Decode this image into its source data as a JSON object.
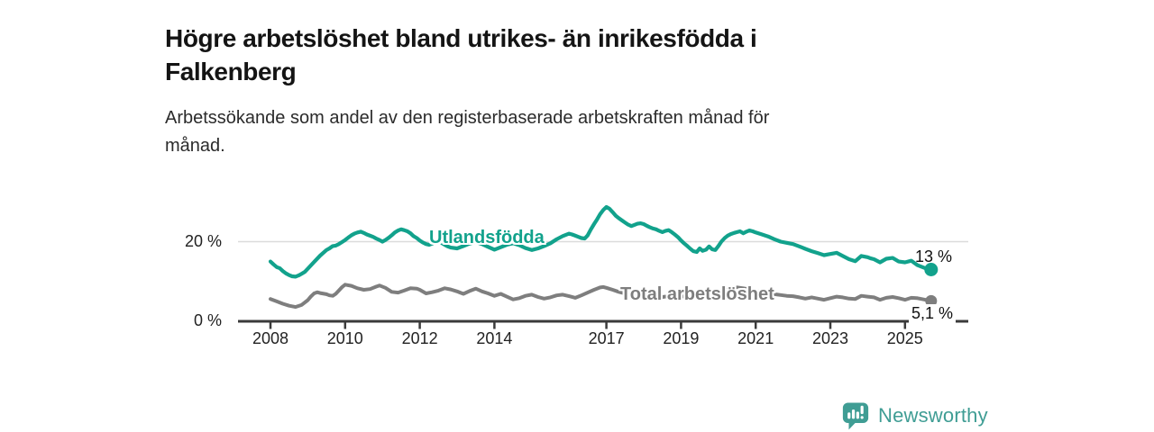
{
  "header": {
    "title_lines": [
      "Högre arbetslöshet bland utrikes- än inrikesfödda i",
      "Falkenberg"
    ],
    "subtitle_lines": [
      "Arbetssökande som andel av den registerbaserade arbetskraften månad för",
      "månad."
    ]
  },
  "chart_data": {
    "type": "line",
    "title": "Högre arbetslöshet bland utrikes- än inrikesfödda i Falkenberg",
    "subtitle": "Arbetssökande som andel av den registerbaserade arbetskraften månad för månad.",
    "x_axis": {
      "unit": "year",
      "ticks": [
        2008,
        2010,
        2012,
        2014,
        2017,
        2019,
        2021,
        2023,
        2025
      ],
      "range": [
        2007.9,
        2025.9
      ]
    },
    "y_axis": {
      "tick_labels": [
        "0 %",
        "20 %"
      ],
      "tick_values": [
        0,
        20
      ],
      "range": [
        0,
        30
      ],
      "gridline_at": 20
    },
    "legend_position": "inline-labels",
    "grid": "y-20-only",
    "series": [
      {
        "name": "Utlandsfödda",
        "color": "#12a28c",
        "end_label": "13 %",
        "end_value": 13,
        "points": [
          [
            2008.0,
            15.0
          ],
          [
            2008.08,
            14.3
          ],
          [
            2008.17,
            13.6
          ],
          [
            2008.25,
            13.3
          ],
          [
            2008.33,
            12.6
          ],
          [
            2008.42,
            12.0
          ],
          [
            2008.5,
            11.6
          ],
          [
            2008.58,
            11.3
          ],
          [
            2008.67,
            11.2
          ],
          [
            2008.75,
            11.5
          ],
          [
            2008.83,
            11.9
          ],
          [
            2008.92,
            12.4
          ],
          [
            2009.0,
            13.2
          ],
          [
            2009.17,
            14.9
          ],
          [
            2009.33,
            16.5
          ],
          [
            2009.5,
            17.9
          ],
          [
            2009.58,
            18.3
          ],
          [
            2009.67,
            18.9
          ],
          [
            2009.75,
            19.0
          ],
          [
            2009.83,
            19.4
          ],
          [
            2009.92,
            19.9
          ],
          [
            2010.0,
            20.4
          ],
          [
            2010.08,
            21.0
          ],
          [
            2010.17,
            21.6
          ],
          [
            2010.25,
            22.0
          ],
          [
            2010.33,
            22.3
          ],
          [
            2010.42,
            22.5
          ],
          [
            2010.5,
            22.2
          ],
          [
            2010.58,
            21.8
          ],
          [
            2010.67,
            21.5
          ],
          [
            2010.75,
            21.2
          ],
          [
            2010.83,
            20.8
          ],
          [
            2010.92,
            20.4
          ],
          [
            2011.0,
            20.0
          ],
          [
            2011.08,
            20.4
          ],
          [
            2011.17,
            21.0
          ],
          [
            2011.25,
            21.6
          ],
          [
            2011.33,
            22.3
          ],
          [
            2011.42,
            22.8
          ],
          [
            2011.5,
            23.1
          ],
          [
            2011.58,
            22.9
          ],
          [
            2011.67,
            22.6
          ],
          [
            2011.75,
            22.1
          ],
          [
            2011.83,
            21.4
          ],
          [
            2011.92,
            20.9
          ],
          [
            2012.0,
            20.3
          ],
          [
            2012.08,
            19.8
          ],
          [
            2012.17,
            19.4
          ],
          [
            2012.25,
            19.2
          ],
          [
            2012.33,
            19.5
          ],
          [
            2012.42,
            19.9
          ],
          [
            2012.5,
            20.1
          ],
          [
            2012.58,
            19.7
          ],
          [
            2012.67,
            19.2
          ],
          [
            2012.75,
            18.8
          ],
          [
            2012.83,
            18.5
          ],
          [
            2013.0,
            18.3
          ],
          [
            2013.17,
            18.9
          ],
          [
            2013.33,
            19.5
          ],
          [
            2013.5,
            19.9
          ],
          [
            2013.67,
            19.4
          ],
          [
            2013.83,
            18.7
          ],
          [
            2014.0,
            18.0
          ],
          [
            2014.17,
            18.6
          ],
          [
            2014.33,
            19.2
          ],
          [
            2014.5,
            19.6
          ],
          [
            2014.67,
            19.1
          ],
          [
            2014.83,
            18.4
          ],
          [
            2015.0,
            17.9
          ],
          [
            2015.17,
            18.3
          ],
          [
            2015.33,
            18.9
          ],
          [
            2015.5,
            19.6
          ],
          [
            2015.67,
            20.6
          ],
          [
            2015.83,
            21.4
          ],
          [
            2016.0,
            22.0
          ],
          [
            2016.08,
            21.8
          ],
          [
            2016.17,
            21.5
          ],
          [
            2016.25,
            21.2
          ],
          [
            2016.33,
            20.9
          ],
          [
            2016.42,
            20.8
          ],
          [
            2016.5,
            21.6
          ],
          [
            2016.58,
            23.0
          ],
          [
            2016.67,
            24.4
          ],
          [
            2016.75,
            25.6
          ],
          [
            2016.83,
            26.9
          ],
          [
            2016.92,
            28.0
          ],
          [
            2017.0,
            28.7
          ],
          [
            2017.08,
            28.3
          ],
          [
            2017.17,
            27.4
          ],
          [
            2017.25,
            26.5
          ],
          [
            2017.33,
            25.9
          ],
          [
            2017.42,
            25.3
          ],
          [
            2017.5,
            24.8
          ],
          [
            2017.58,
            24.3
          ],
          [
            2017.67,
            23.9
          ],
          [
            2017.75,
            24.2
          ],
          [
            2017.83,
            24.5
          ],
          [
            2017.92,
            24.6
          ],
          [
            2018.0,
            24.4
          ],
          [
            2018.08,
            24.0
          ],
          [
            2018.17,
            23.6
          ],
          [
            2018.25,
            23.3
          ],
          [
            2018.33,
            23.1
          ],
          [
            2018.42,
            22.7
          ],
          [
            2018.5,
            22.4
          ],
          [
            2018.58,
            22.7
          ],
          [
            2018.67,
            22.9
          ],
          [
            2018.75,
            22.4
          ],
          [
            2018.83,
            21.8
          ],
          [
            2018.92,
            21.1
          ],
          [
            2019.0,
            20.3
          ],
          [
            2019.08,
            19.6
          ],
          [
            2019.17,
            18.9
          ],
          [
            2019.25,
            18.2
          ],
          [
            2019.33,
            17.6
          ],
          [
            2019.42,
            17.4
          ],
          [
            2019.5,
            18.3
          ],
          [
            2019.58,
            17.7
          ],
          [
            2019.67,
            18.0
          ],
          [
            2019.75,
            18.8
          ],
          [
            2019.83,
            18.1
          ],
          [
            2019.92,
            17.9
          ],
          [
            2020.0,
            18.9
          ],
          [
            2020.08,
            20.0
          ],
          [
            2020.17,
            20.9
          ],
          [
            2020.25,
            21.5
          ],
          [
            2020.33,
            21.9
          ],
          [
            2020.42,
            22.2
          ],
          [
            2020.5,
            22.4
          ],
          [
            2020.58,
            22.6
          ],
          [
            2020.67,
            22.1
          ],
          [
            2020.75,
            22.5
          ],
          [
            2020.83,
            22.8
          ],
          [
            2020.92,
            22.6
          ],
          [
            2021.0,
            22.3
          ],
          [
            2021.17,
            21.8
          ],
          [
            2021.33,
            21.3
          ],
          [
            2021.5,
            20.6
          ],
          [
            2021.67,
            20.0
          ],
          [
            2021.83,
            19.7
          ],
          [
            2022.0,
            19.4
          ],
          [
            2022.17,
            18.8
          ],
          [
            2022.33,
            18.2
          ],
          [
            2022.5,
            17.6
          ],
          [
            2022.67,
            17.1
          ],
          [
            2022.83,
            16.6
          ],
          [
            2023.0,
            16.9
          ],
          [
            2023.17,
            17.2
          ],
          [
            2023.33,
            16.4
          ],
          [
            2023.5,
            15.6
          ],
          [
            2023.67,
            15.1
          ],
          [
            2023.83,
            16.4
          ],
          [
            2024.0,
            16.1
          ],
          [
            2024.08,
            15.8
          ],
          [
            2024.17,
            15.6
          ],
          [
            2024.33,
            14.8
          ],
          [
            2024.5,
            15.7
          ],
          [
            2024.67,
            15.9
          ],
          [
            2024.83,
            15.0
          ],
          [
            2025.0,
            14.8
          ],
          [
            2025.17,
            15.2
          ],
          [
            2025.33,
            14.1
          ],
          [
            2025.5,
            13.5
          ],
          [
            2025.58,
            13.2
          ],
          [
            2025.7,
            13.0
          ]
        ]
      },
      {
        "name": "Total arbetslöshet",
        "color": "#7e7e7e",
        "end_label": "5,1 %",
        "end_value": 5.1,
        "points": [
          [
            2008.0,
            5.6
          ],
          [
            2008.17,
            5.0
          ],
          [
            2008.33,
            4.4
          ],
          [
            2008.5,
            3.9
          ],
          [
            2008.67,
            3.6
          ],
          [
            2008.83,
            4.1
          ],
          [
            2009.0,
            5.3
          ],
          [
            2009.08,
            6.2
          ],
          [
            2009.17,
            7.0
          ],
          [
            2009.25,
            7.3
          ],
          [
            2009.33,
            7.1
          ],
          [
            2009.5,
            6.8
          ],
          [
            2009.58,
            6.5
          ],
          [
            2009.67,
            6.4
          ],
          [
            2009.75,
            6.9
          ],
          [
            2009.83,
            7.7
          ],
          [
            2009.92,
            8.6
          ],
          [
            2010.0,
            9.2
          ],
          [
            2010.17,
            8.9
          ],
          [
            2010.33,
            8.3
          ],
          [
            2010.5,
            7.9
          ],
          [
            2010.67,
            8.1
          ],
          [
            2010.83,
            8.7
          ],
          [
            2010.92,
            9.0
          ],
          [
            2011.08,
            8.4
          ],
          [
            2011.25,
            7.4
          ],
          [
            2011.42,
            7.2
          ],
          [
            2011.58,
            7.7
          ],
          [
            2011.75,
            8.3
          ],
          [
            2011.92,
            8.2
          ],
          [
            2012.0,
            7.9
          ],
          [
            2012.17,
            7.0
          ],
          [
            2012.33,
            7.3
          ],
          [
            2012.5,
            7.7
          ],
          [
            2012.67,
            8.3
          ],
          [
            2012.83,
            8.0
          ],
          [
            2013.0,
            7.5
          ],
          [
            2013.17,
            6.9
          ],
          [
            2013.33,
            7.6
          ],
          [
            2013.5,
            8.2
          ],
          [
            2013.67,
            7.5
          ],
          [
            2013.83,
            7.0
          ],
          [
            2014.0,
            6.4
          ],
          [
            2014.17,
            6.9
          ],
          [
            2014.33,
            6.2
          ],
          [
            2014.5,
            5.5
          ],
          [
            2014.67,
            5.8
          ],
          [
            2014.83,
            6.4
          ],
          [
            2015.0,
            6.7
          ],
          [
            2015.17,
            6.1
          ],
          [
            2015.33,
            5.7
          ],
          [
            2015.5,
            6.0
          ],
          [
            2015.67,
            6.5
          ],
          [
            2015.83,
            6.7
          ],
          [
            2016.0,
            6.3
          ],
          [
            2016.17,
            5.9
          ],
          [
            2016.33,
            6.5
          ],
          [
            2016.5,
            7.2
          ],
          [
            2016.67,
            7.9
          ],
          [
            2016.83,
            8.5
          ],
          [
            2016.92,
            8.6
          ],
          [
            2017.0,
            8.4
          ],
          [
            2017.17,
            7.9
          ],
          [
            2017.33,
            7.4
          ],
          [
            2017.5,
            7.0
          ],
          [
            2017.67,
            6.8
          ],
          [
            2017.83,
            7.1
          ],
          [
            2018.0,
            7.3
          ],
          [
            2018.17,
            6.9
          ],
          [
            2018.33,
            6.4
          ],
          [
            2018.5,
            6.1
          ],
          [
            2018.67,
            6.3
          ],
          [
            2018.83,
            6.6
          ],
          [
            2019.0,
            6.4
          ],
          [
            2019.17,
            6.0
          ],
          [
            2019.33,
            5.7
          ],
          [
            2019.5,
            5.9
          ],
          [
            2019.67,
            6.1
          ],
          [
            2019.83,
            6.4
          ],
          [
            2020.0,
            6.8
          ],
          [
            2020.17,
            7.6
          ],
          [
            2020.33,
            8.2
          ],
          [
            2020.5,
            8.5
          ],
          [
            2020.67,
            8.3
          ],
          [
            2020.83,
            8.0
          ],
          [
            2021.0,
            7.8
          ],
          [
            2021.17,
            7.4
          ],
          [
            2021.33,
            7.1
          ],
          [
            2021.5,
            6.8
          ],
          [
            2021.67,
            6.6
          ],
          [
            2021.83,
            6.4
          ],
          [
            2022.0,
            6.3
          ],
          [
            2022.17,
            6.0
          ],
          [
            2022.33,
            5.7
          ],
          [
            2022.5,
            6.0
          ],
          [
            2022.67,
            5.7
          ],
          [
            2022.83,
            5.4
          ],
          [
            2023.0,
            5.8
          ],
          [
            2023.17,
            6.2
          ],
          [
            2023.33,
            6.0
          ],
          [
            2023.5,
            5.7
          ],
          [
            2023.67,
            5.6
          ],
          [
            2023.83,
            6.4
          ],
          [
            2024.0,
            6.2
          ],
          [
            2024.17,
            6.0
          ],
          [
            2024.33,
            5.4
          ],
          [
            2024.5,
            5.9
          ],
          [
            2024.67,
            6.1
          ],
          [
            2024.83,
            5.8
          ],
          [
            2025.0,
            5.4
          ],
          [
            2025.17,
            5.9
          ],
          [
            2025.33,
            5.8
          ],
          [
            2025.5,
            5.5
          ],
          [
            2025.7,
            5.1
          ]
        ]
      }
    ],
    "colors": {
      "axis": "#3b3b3b",
      "gridline": "#dcdcdc",
      "tick_label": "#222222"
    }
  },
  "branding": {
    "logo_text": "Newsworthy",
    "logo_color": "#3f9d94",
    "logo_icon": "speech-bubble-bar-chart-icon"
  }
}
